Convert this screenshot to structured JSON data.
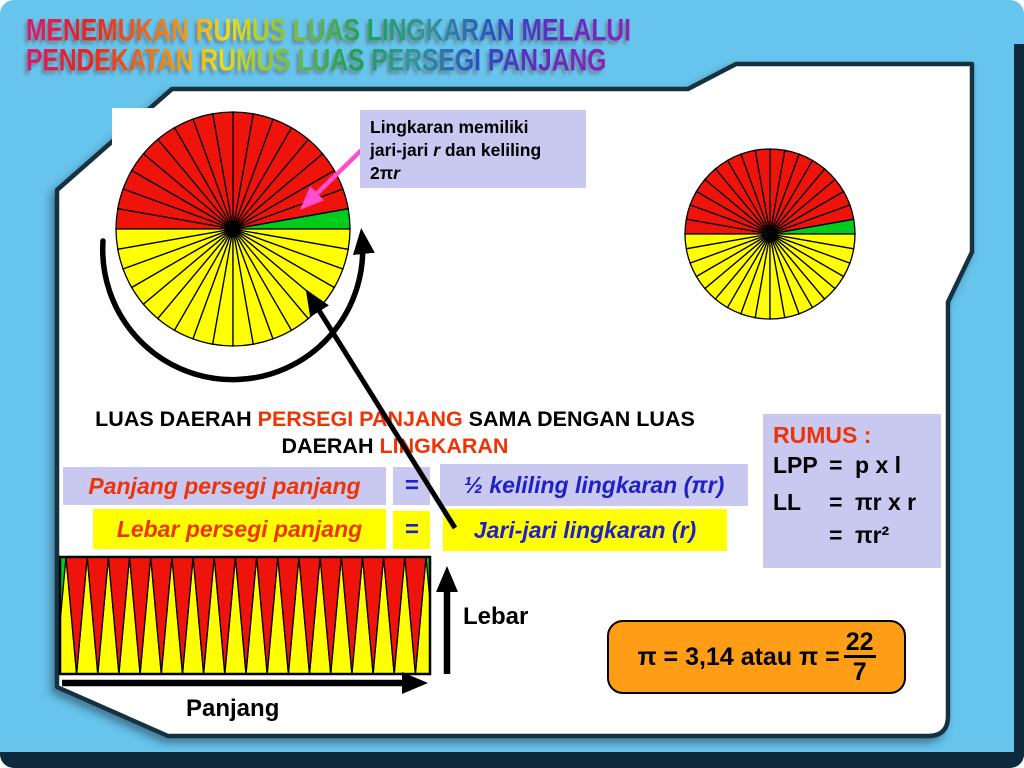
{
  "slide": {
    "title": {
      "line1": "MENEMUKAN RUMUS LUAS LINGKARAN MELALUI",
      "line2": "PENDEKATAN RUMUS LUAS PERSEGI PANJANG"
    },
    "callout": {
      "line1": "Lingkaran memiliki",
      "line2_pre": "jari-jari ",
      "line2_var": "r",
      "line2_post": " dan keliling",
      "line3_coef": "2",
      "line3_pi": "π",
      "line3_var": "r"
    },
    "statement": {
      "part1": "LUAS DAERAH ",
      "part2": "PERSEGI PANJANG",
      "part3": " SAMA DENGAN LUAS",
      "part4": "DAERAH ",
      "part5": "LINGKARAN"
    },
    "equations": {
      "row1": {
        "left": "Panjang persegi panjang",
        "eq": "=",
        "right": "½ keliling lingkaran (πr)"
      },
      "row2": {
        "left": "Lebar persegi panjang",
        "eq": "=",
        "right": "Jari-jari lingkaran (r)"
      }
    },
    "rumus": {
      "heading": "RUMUS :",
      "rows": [
        {
          "label": "LPP",
          "eq": "=",
          "rhs": "p x l"
        },
        {
          "label": "LL",
          "eq": "=",
          "rhs": "πr x r"
        },
        {
          "label": "",
          "eq": "=",
          "rhs": "πr²"
        }
      ]
    },
    "pi_note": {
      "lead": "π = 3,14 atau π = ",
      "numerator": "22",
      "denominator": "7"
    },
    "dim_labels": {
      "width": "Lebar",
      "length": "Panjang"
    }
  },
  "figures": {
    "fan_sector_count": 36,
    "fan_sector_degrees": 10,
    "green_sector_index": 0,
    "strip_pair_count": 17
  },
  "colors": {
    "slide_bg": "#67C4EC",
    "frame_dark": "#0F2A3C",
    "panel_bg": "#FFFFFF",
    "panel_stroke": "#16303F",
    "box_lavender": "#C8C8F0",
    "box_yellow": "#FFFF00",
    "text_red": "#EE3407",
    "text_blue": "#2020C8",
    "circle_red": "#EE140C",
    "circle_yellow": "#FFFF00",
    "circle_green": "#00CC1E",
    "pi_box_orange": "#FF9E16",
    "arrow_pink": "#FF4FD0"
  }
}
